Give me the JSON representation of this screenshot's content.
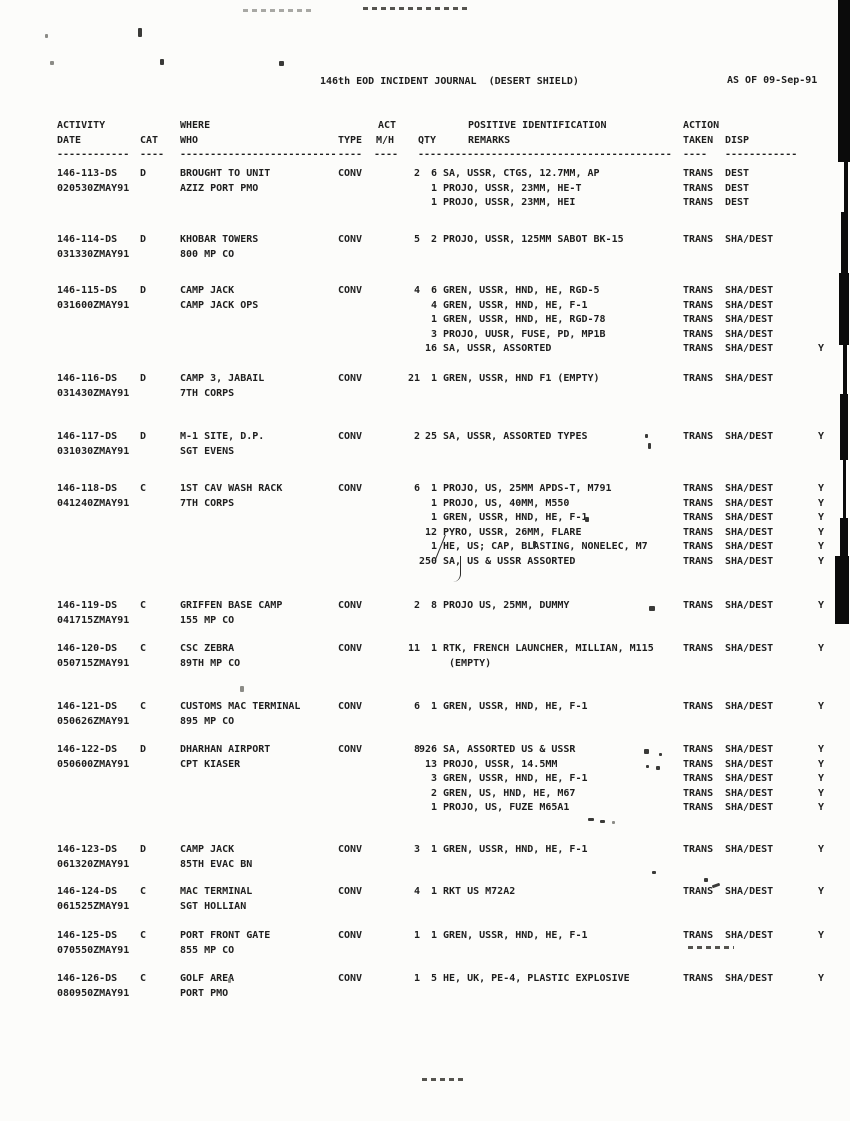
{
  "header": {
    "title": "146th EOD INCIDENT JOURNAL  (DESERT SHIELD)",
    "as_of": "AS OF 09-Sep-91"
  },
  "columns": {
    "activity": "ACTIVITY",
    "date": "DATE",
    "cat": "CAT",
    "where": "WHERE",
    "who": "WHO",
    "type": "TYPE",
    "act": "ACT",
    "mh": "M/H",
    "qty": "QTY",
    "pos_id": "POSITIVE IDENTIFICATION",
    "remarks": "REMARKS",
    "action": "ACTION",
    "taken": "TAKEN",
    "disp": "DISP"
  },
  "records": [
    {
      "id": "146-113-DS",
      "dtg": "020530ZMAY91",
      "cat": "D",
      "where": "BROUGHT TO UNIT",
      "who": "AZIZ PORT PMO",
      "type": "CONV",
      "act_mh": "2",
      "lines": [
        {
          "qty": "6",
          "text": "SA, USSR, CTGS, 12.7MM, AP",
          "action": "TRANS",
          "disp": "DEST",
          "flag": ""
        },
        {
          "qty": "1",
          "text": "PROJO, USSR, 23MM, HE-T",
          "action": "TRANS",
          "disp": "DEST",
          "flag": ""
        },
        {
          "qty": "1",
          "text": "PROJO, USSR, 23MM, HEI",
          "action": "TRANS",
          "disp": "DEST",
          "flag": ""
        }
      ]
    },
    {
      "id": "146-114-DS",
      "dtg": "031330ZMAY91",
      "cat": "D",
      "where": "KHOBAR TOWERS",
      "who": "800 MP CO",
      "type": "CONV",
      "act_mh": "5",
      "lines": [
        {
          "qty": "2",
          "text": "PROJO, USSR, 125MM SABOT BK-15",
          "action": "TRANS",
          "disp": "SHA/DEST",
          "flag": ""
        }
      ]
    },
    {
      "id": "146-115-DS",
      "dtg": "031600ZMAY91",
      "cat": "D",
      "where": "CAMP JACK",
      "who": "CAMP JACK OPS",
      "type": "CONV",
      "act_mh": "4",
      "lines": [
        {
          "qty": "6",
          "text": "GREN, USSR, HND, HE, RGD-5",
          "action": "TRANS",
          "disp": "SHA/DEST",
          "flag": ""
        },
        {
          "qty": "4",
          "text": "GREN, USSR, HND, HE, F-1",
          "action": "TRANS",
          "disp": "SHA/DEST",
          "flag": ""
        },
        {
          "qty": "1",
          "text": "GREN, USSR, HND, HE, RGD-78",
          "action": "TRANS",
          "disp": "SHA/DEST",
          "flag": ""
        },
        {
          "qty": "3",
          "text": "PROJO, UUSR, FUSE, PD, MP1B",
          "action": "TRANS",
          "disp": "SHA/DEST",
          "flag": ""
        },
        {
          "qty": "16",
          "text": "SA, USSR, ASSORTED",
          "action": "TRANS",
          "disp": "SHA/DEST",
          "flag": "Y"
        }
      ]
    },
    {
      "id": "146-116-DS",
      "dtg": "031430ZMAY91",
      "cat": "D",
      "where": "CAMP 3, JABAIL",
      "who": "7TH CORPS",
      "type": "CONV",
      "act_mh": "21",
      "lines": [
        {
          "qty": "1",
          "text": "GREN, USSR, HND F1 (EMPTY)",
          "action": "TRANS",
          "disp": "SHA/DEST",
          "flag": ""
        }
      ]
    },
    {
      "id": "146-117-DS",
      "dtg": "031030ZMAY91",
      "cat": "D",
      "where": "M-1 SITE, D.P.",
      "who": "SGT EVENS",
      "type": "CONV",
      "act_mh": "2",
      "lines": [
        {
          "qty": "25",
          "text": "SA, USSR, ASSORTED TYPES",
          "action": "TRANS",
          "disp": "SHA/DEST",
          "flag": "Y"
        }
      ]
    },
    {
      "id": "146-118-DS",
      "dtg": "041240ZMAY91",
      "cat": "C",
      "where": "1ST CAV WASH RACK",
      "who": "7TH CORPS",
      "type": "CONV",
      "act_mh": "6",
      "lines": [
        {
          "qty": "1",
          "text": "PROJO, US, 25MM APDS-T, M791",
          "action": "TRANS",
          "disp": "SHA/DEST",
          "flag": "Y"
        },
        {
          "qty": "1",
          "text": "PROJO, US, 40MM, M550",
          "action": "TRANS",
          "disp": "SHA/DEST",
          "flag": "Y"
        },
        {
          "qty": "1",
          "text": "GREN, USSR, HND, HE, F-1",
          "action": "TRANS",
          "disp": "SHA/DEST",
          "flag": "Y"
        },
        {
          "qty": "12",
          "text": "PYRO, USSR, 26MM, FLARE",
          "action": "TRANS",
          "disp": "SHA/DEST",
          "flag": "Y"
        },
        {
          "qty": "1",
          "text": "HE, US; CAP, BLASTING, NONELEC, M7",
          "action": "TRANS",
          "disp": "SHA/DEST",
          "flag": "Y"
        },
        {
          "qty": "250",
          "text": "SA, US & USSR ASSORTED",
          "action": "TRANS",
          "disp": "SHA/DEST",
          "flag": "Y"
        }
      ]
    },
    {
      "id": "146-119-DS",
      "dtg": "041715ZMAY91",
      "cat": "C",
      "where": "GRIFFEN BASE CAMP",
      "who": "155 MP CO",
      "type": "CONV",
      "act_mh": "2",
      "lines": [
        {
          "qty": "8",
          "text": "PROJO US, 25MM, DUMMY",
          "action": "TRANS",
          "disp": "SHA/DEST",
          "flag": "Y"
        }
      ]
    },
    {
      "id": "146-120-DS",
      "dtg": "050715ZMAY91",
      "cat": "C",
      "where": "CSC ZEBRA",
      "who": "89TH MP CO",
      "type": "CONV",
      "act_mh": "11",
      "lines": [
        {
          "qty": "1",
          "text": "RTK, FRENCH LAUNCHER, MILLIAN, M115",
          "action": "TRANS",
          "disp": "SHA/DEST",
          "flag": "Y"
        },
        {
          "qty": "",
          "text": " (EMPTY)",
          "action": "",
          "disp": "",
          "flag": ""
        }
      ]
    },
    {
      "id": "146-121-DS",
      "dtg": "050626ZMAY91",
      "cat": "C",
      "where": "CUSTOMS MAC TERMINAL",
      "who": "895 MP CO",
      "type": "CONV",
      "act_mh": "6",
      "lines": [
        {
          "qty": "1",
          "text": "GREN, USSR, HND, HE, F-1",
          "action": "TRANS",
          "disp": "SHA/DEST",
          "flag": "Y"
        }
      ]
    },
    {
      "id": "146-122-DS",
      "dtg": "050600ZMAY91",
      "cat": "D",
      "where": "DHARHAN AIRPORT",
      "who": "CPT KIASER",
      "type": "CONV",
      "act_mh": "8",
      "lines": [
        {
          "qty": "926",
          "text": "SA, ASSORTED US & USSR",
          "action": "TRANS",
          "disp": "SHA/DEST",
          "flag": "Y"
        },
        {
          "qty": "13",
          "text": "PROJO, USSR, 14.5MM",
          "action": "TRANS",
          "disp": "SHA/DEST",
          "flag": "Y"
        },
        {
          "qty": "3",
          "text": "GREN, USSR, HND, HE, F-1",
          "action": "TRANS",
          "disp": "SHA/DEST",
          "flag": "Y"
        },
        {
          "qty": "2",
          "text": "GREN, US, HND, HE, M67",
          "action": "TRANS",
          "disp": "SHA/DEST",
          "flag": "Y"
        },
        {
          "qty": "1",
          "text": "PROJO, US, FUZE M65A1",
          "action": "TRANS",
          "disp": "SHA/DEST",
          "flag": "Y"
        }
      ]
    },
    {
      "id": "146-123-DS",
      "dtg": "061320ZMAY91",
      "cat": "D",
      "where": "CAMP JACK",
      "who": "85TH EVAC BN",
      "type": "CONV",
      "act_mh": "3",
      "lines": [
        {
          "qty": "1",
          "text": "GREN, USSR, HND, HE, F-1",
          "action": "TRANS",
          "disp": "SHA/DEST",
          "flag": "Y"
        }
      ]
    },
    {
      "id": "146-124-DS",
      "dtg": "061525ZMAY91",
      "cat": "C",
      "where": "MAC TERMINAL",
      "who": "SGT HOLLIAN",
      "type": "CONV",
      "act_mh": "4",
      "lines": [
        {
          "qty": "1",
          "text": "RKT US M72A2",
          "action": "TRANS",
          "disp": "SHA/DEST",
          "flag": "Y"
        }
      ]
    },
    {
      "id": "146-125-DS",
      "dtg": "070550ZMAY91",
      "cat": "C",
      "where": "PORT FRONT GATE",
      "who": "855 MP CO",
      "type": "CONV",
      "act_mh": "1",
      "lines": [
        {
          "qty": "1",
          "text": "GREN, USSR, HND, HE, F-1",
          "action": "TRANS",
          "disp": "SHA/DEST",
          "flag": "Y"
        }
      ]
    },
    {
      "id": "146-126-DS",
      "dtg": "080950ZMAY91",
      "cat": "C",
      "where": "GOLF AREA",
      "who": "PORT PMO",
      "type": "CONV",
      "act_mh": "1",
      "lines": [
        {
          "qty": "5",
          "text": "HE, UK, PE-4, PLASTIC EXPLOSIVE",
          "action": "TRANS",
          "disp": "SHA/DEST",
          "flag": "Y"
        }
      ]
    }
  ]
}
